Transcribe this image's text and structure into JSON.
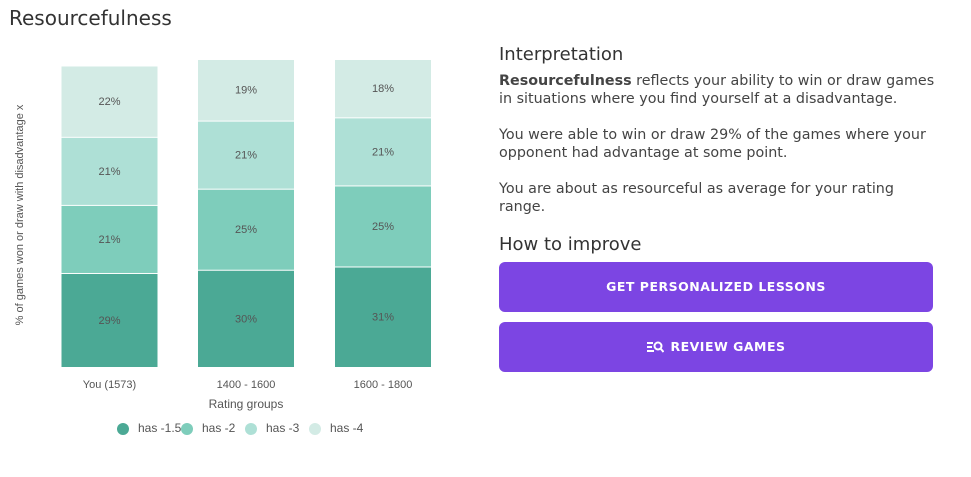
{
  "page_title": "Resourcefulness",
  "chart_data": {
    "type": "stacked_bar",
    "ylabel": "% of games won or draw with disadvantage x",
    "xlabel": "Rating groups",
    "categories": [
      "You (1573)",
      "1400 - 1600",
      "1600 - 1800"
    ],
    "ylim": [
      0,
      95
    ],
    "legend": "bottom",
    "series": [
      {
        "name": "has -1.5",
        "color": "#4ba995",
        "values": [
          29,
          30,
          31
        ],
        "value_labels": [
          "29%",
          "30%",
          "31%"
        ]
      },
      {
        "name": "has -2",
        "color": "#7ecdbb",
        "values": [
          21,
          25,
          25
        ],
        "value_labels": [
          "21%",
          "25%",
          "25%"
        ]
      },
      {
        "name": "has -3",
        "color": "#aee0d6",
        "values": [
          21,
          21,
          21
        ],
        "value_labels": [
          "21%",
          "21%",
          "21%"
        ]
      },
      {
        "name": "has -4",
        "color": "#d3ebe5",
        "values": [
          22,
          19,
          18
        ],
        "value_labels": [
          "22%",
          "19%",
          "18%"
        ]
      }
    ]
  },
  "panel": {
    "heading": "Interpretation",
    "intro_bold": "Resourcefulness",
    "intro_text": " reflects your ability to win or draw games in situations where you find yourself at a disadvantage.",
    "paragraphs": [
      "You were able to win or draw 29% of the games where your opponent had advantage at some point.",
      "You are about as resourceful as average for your rating range."
    ],
    "improve_heading": "How to improve",
    "buttons": [
      "GET PERSONALIZED LESSONS",
      "REVIEW GAMES"
    ]
  }
}
